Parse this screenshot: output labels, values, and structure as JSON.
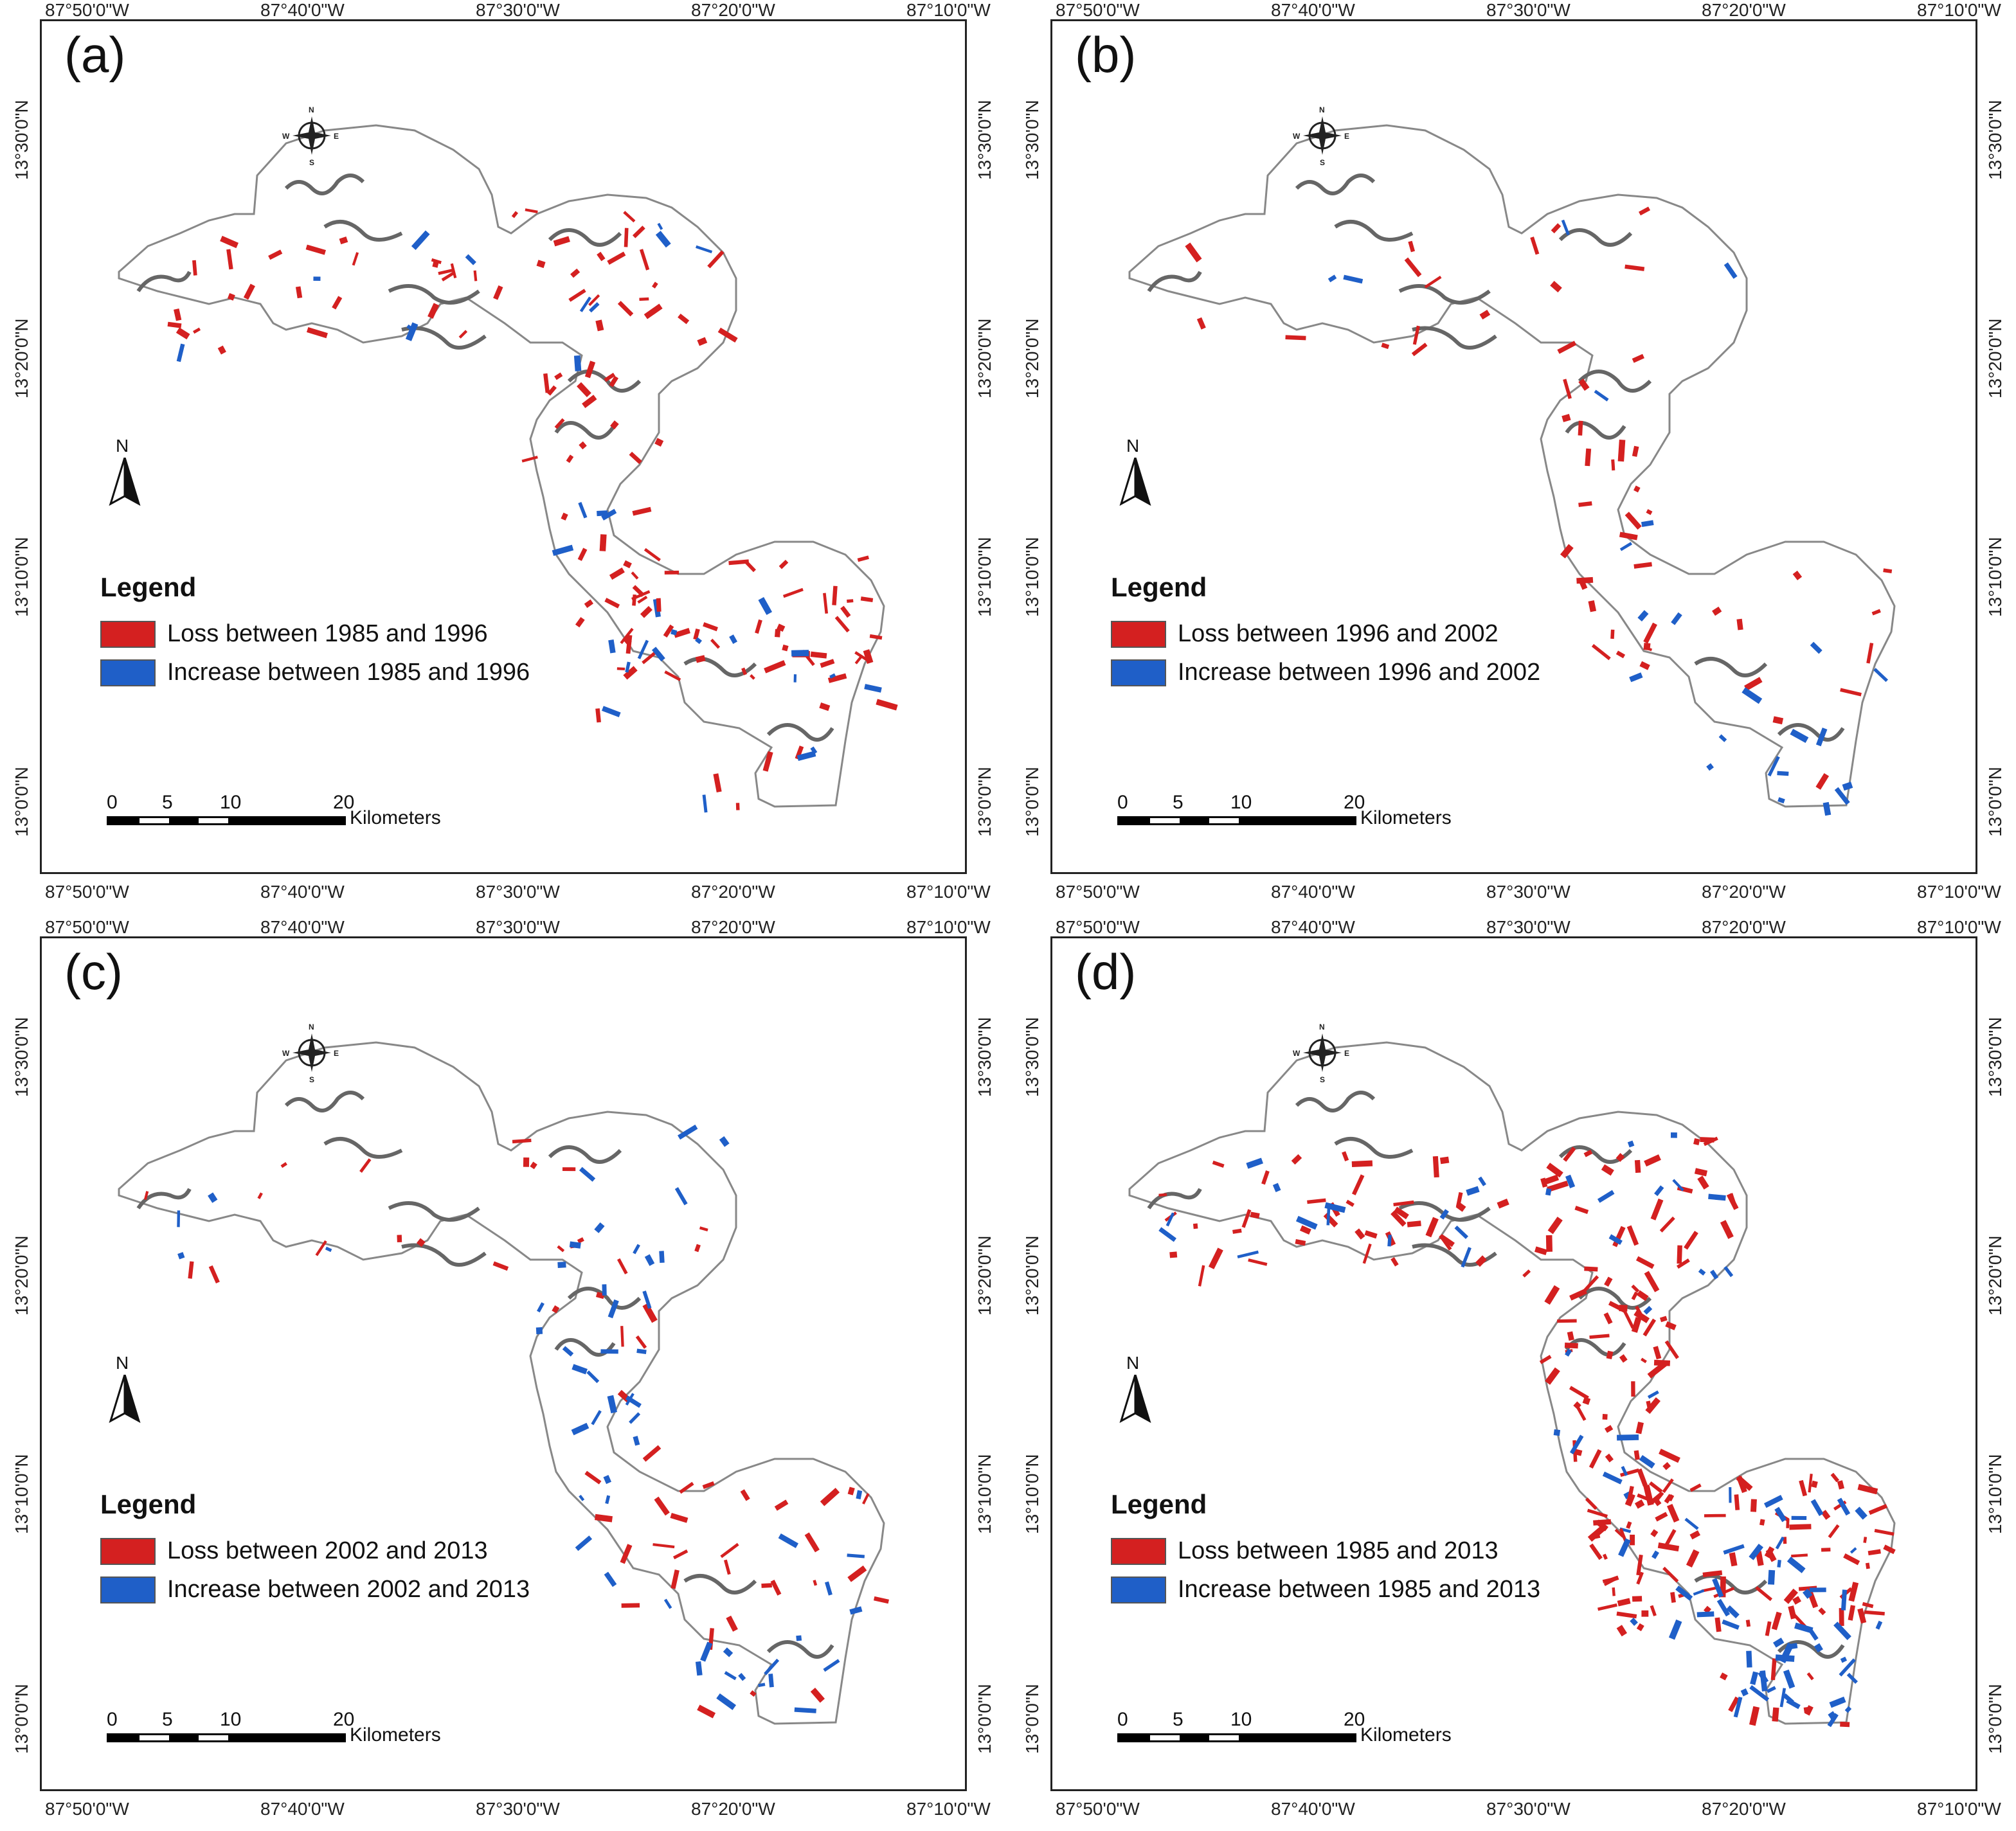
{
  "x_ticks": [
    "87°50'0\"W",
    "87°40'0\"W",
    "87°30'0\"W",
    "87°20'0\"W",
    "87°10'0\"W"
  ],
  "y_ticks": [
    "13°30'0\"N",
    "13°20'0\"N",
    "13°10'0\"N",
    "13°0'0\"N"
  ],
  "legend_title": "Legend",
  "north_label": "N",
  "compass": {
    "n": "N",
    "s": "S",
    "e": "E",
    "w": "W"
  },
  "scale": {
    "labels": [
      "0",
      "5",
      "10",
      "20"
    ],
    "unit": "Kilometers"
  },
  "colors": {
    "loss": "#d42020",
    "increase": "#1f5fc8",
    "outline": "#888888"
  },
  "panels": [
    {
      "label": "(a)",
      "loss": "Loss between 1985 and 1996",
      "increase": "Increase between 1985 and 1996"
    },
    {
      "label": "(b)",
      "loss": "Loss between 1996 and 2002",
      "increase": "Increase between 1996 and 2002"
    },
    {
      "label": "(c)",
      "loss": "Loss between 2002 and 2013",
      "increase": "Increase between 2002 and 2013"
    },
    {
      "label": "(d)",
      "loss": "Loss between 1985 and 2013",
      "increase": "Increase between 1985 and 2013"
    }
  ]
}
